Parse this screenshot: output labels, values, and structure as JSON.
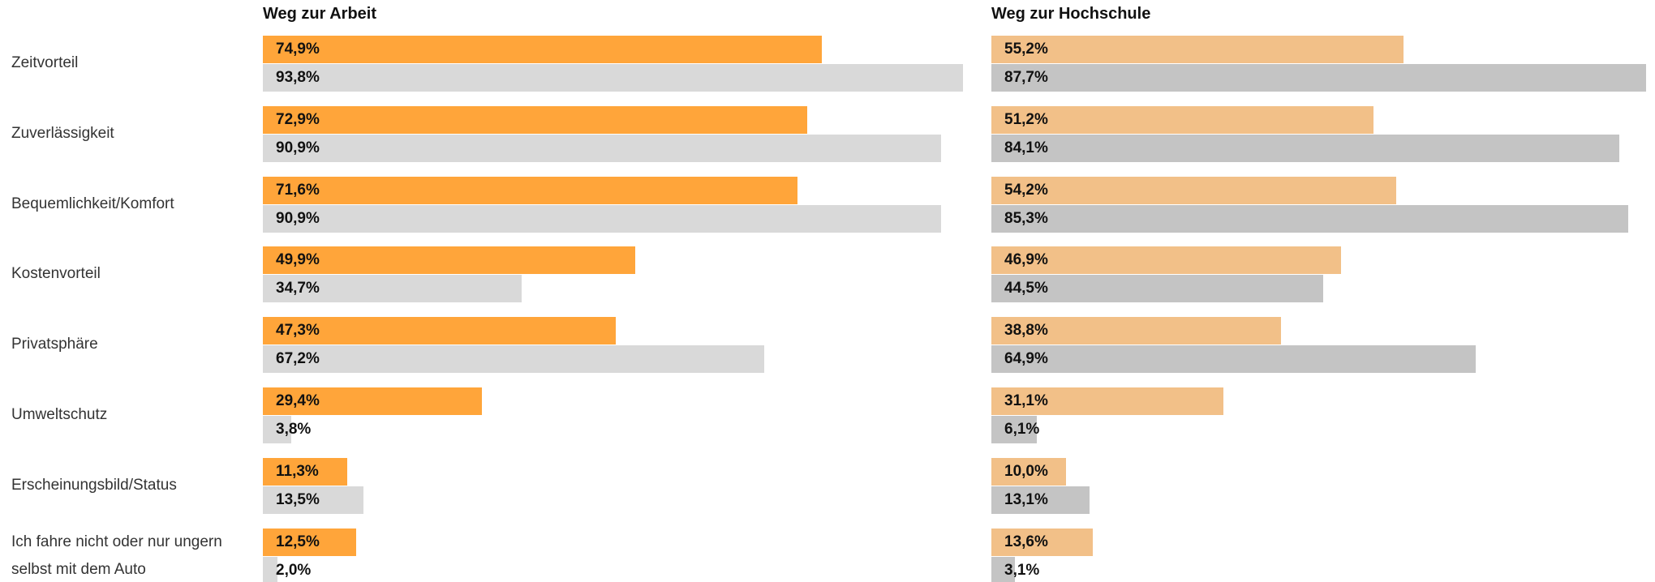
{
  "chart_data": {
    "type": "bar",
    "categories": [
      "Zeitvorteil",
      "Zuverlässigkeit",
      "Bequemlichkeit/Komfort",
      "Kostenvorteil",
      "Privatsphäre",
      "Umweltschutz",
      "Erscheinungsbild/Status",
      "Ich fahre nicht oder nur ungern selbst mit dem Auto"
    ],
    "xlim": [
      0,
      100
    ],
    "panels": [
      {
        "title": "Weg zur Arbeit",
        "series": [
          {
            "color": "#ffa53a",
            "values": [
              74.9,
              72.9,
              71.6,
              49.9,
              47.3,
              29.4,
              11.3,
              12.5
            ],
            "value_labels": [
              "74,9%",
              "72,9%",
              "71,6%",
              "49,9%",
              "47,3%",
              "29,4%",
              "11,3%",
              "12,5%"
            ]
          },
          {
            "color": "#d9d9d9",
            "values": [
              93.8,
              90.9,
              90.9,
              34.7,
              67.2,
              3.8,
              13.5,
              2.0
            ],
            "value_labels": [
              "93,8%",
              "90,9%",
              "90,9%",
              "34,7%",
              "67,2%",
              "3,8%",
              "13,5%",
              "2,0%"
            ]
          }
        ]
      },
      {
        "title": "Weg zur Hochschule",
        "series": [
          {
            "color": "#f2c088",
            "values": [
              55.2,
              51.2,
              54.2,
              46.9,
              38.8,
              31.1,
              10.0,
              13.6
            ],
            "value_labels": [
              "55,2%",
              "51,2%",
              "54,2%",
              "46,9%",
              "38,8%",
              "31,1%",
              "10,0%",
              "13,6%"
            ]
          },
          {
            "color": "#c4c4c4",
            "values": [
              87.7,
              84.1,
              85.3,
              44.5,
              64.9,
              6.1,
              13.1,
              3.1
            ],
            "value_labels": [
              "87,7%",
              "84,1%",
              "85,3%",
              "44,5%",
              "64,9%",
              "6,1%",
              "13,1%",
              "3,1%"
            ]
          }
        ]
      }
    ]
  }
}
